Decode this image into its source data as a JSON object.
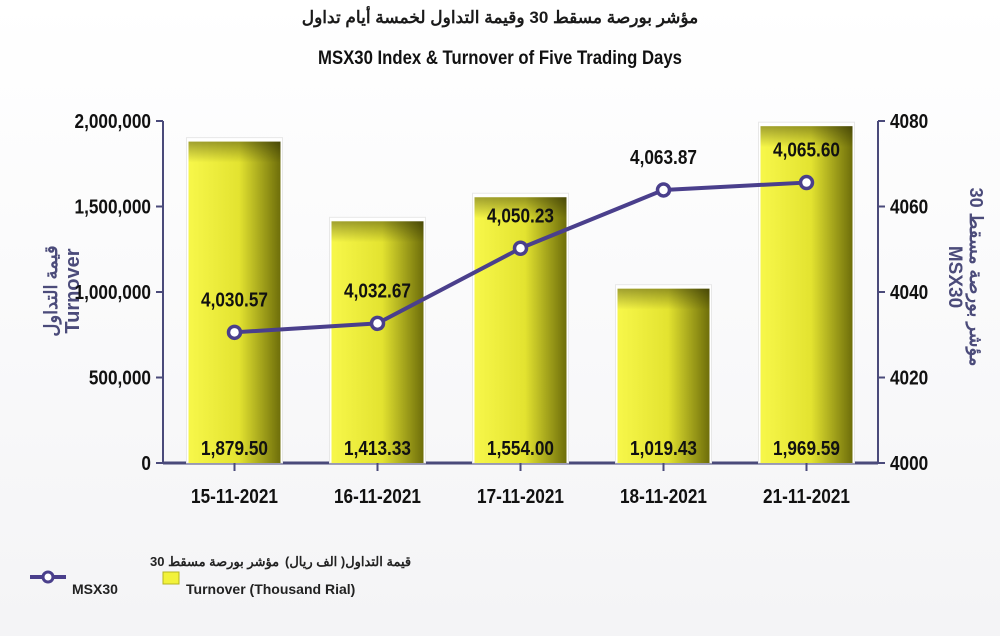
{
  "title_ar": "مؤشر بورصة مسقط 30 وقيمة التداول لخمسة أيام تداول",
  "title_en": "MSX30 Index & Turnover of Five Trading Days",
  "y_left_title": {
    "ar": "قيمة التداول",
    "en": "Turnover"
  },
  "y_right_title": {
    "ar": "مؤشر بورصة مسقط 30",
    "en": "MSX30"
  },
  "legend": [
    {
      "ar": "مؤشر بورصة مسقط 30",
      "en": "MSX30",
      "color": "#4a3f8c"
    },
    {
      "ar": "قيمة التداول( الف ريال)",
      "en": "Turnover (Thousand Rial)",
      "color": "#f2f23a"
    }
  ],
  "colors": {
    "bar": "#f0f03a",
    "bar_dark": "#77770c",
    "line": "#4a3f8c",
    "axis": "#4a4a7a"
  },
  "chart_data": {
    "type": "bar",
    "categories": [
      "15-11-2021",
      "16-11-2021",
      "17-11-2021",
      "18-11-2021",
      "21-11-2021"
    ],
    "series": [
      {
        "name": "Turnover (Thousand Rial)",
        "type": "bar",
        "axis": "left",
        "values": [
          1879.5,
          1413.33,
          1554.0,
          1019.43,
          1969.59
        ],
        "value_labels": [
          "1,879.50",
          "1,413.33",
          "1,554.00",
          "1,019.43",
          "1,969.59"
        ]
      },
      {
        "name": "MSX30",
        "type": "line",
        "axis": "right",
        "values": [
          4030.57,
          4032.67,
          4050.23,
          4063.87,
          4065.6
        ],
        "value_labels": [
          "4,030.57",
          "4,032.67",
          "4,050.23",
          "4,063.87",
          "4,065.60"
        ]
      }
    ],
    "y_left": {
      "range": [
        0,
        2000
      ],
      "ticks": [
        0,
        500,
        1000,
        1500,
        2000
      ],
      "tick_labels": [
        "0",
        "500,000",
        "1,000,000",
        "1,500,000",
        "2,000,000"
      ]
    },
    "y_right": {
      "range": [
        4000,
        4080
      ],
      "ticks": [
        4000,
        4020,
        4040,
        4060,
        4080
      ],
      "tick_labels": [
        "4000",
        "4020",
        "4040",
        "4060",
        "4080"
      ]
    },
    "grid": false,
    "legend_position": "bottom-left"
  }
}
